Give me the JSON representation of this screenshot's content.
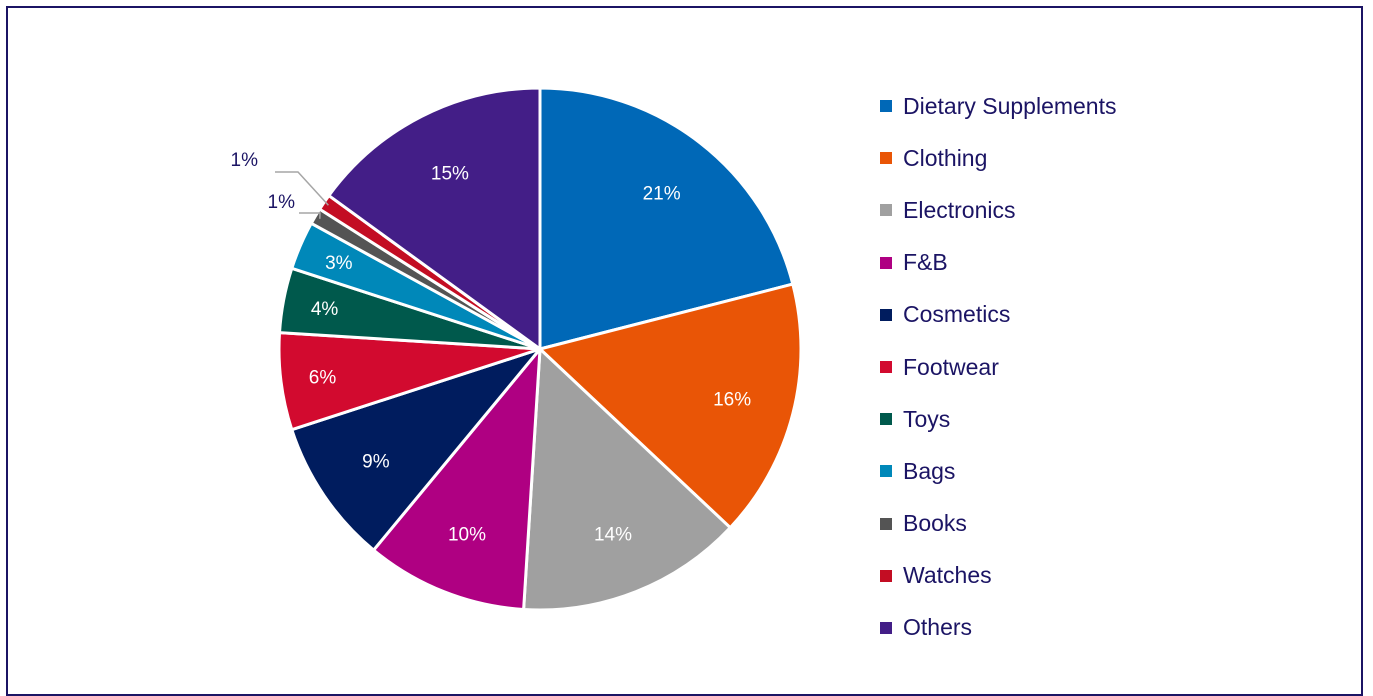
{
  "chart_data": {
    "type": "pie",
    "title": "",
    "legend_position": "right",
    "slices": [
      {
        "label": "Dietary Supplements",
        "value": 21,
        "display": "21%",
        "color": "#0068b7"
      },
      {
        "label": "Clothing",
        "value": 16,
        "display": "16%",
        "color": "#e95506"
      },
      {
        "label": "Electronics",
        "value": 14,
        "display": "14%",
        "color": "#a0a0a0"
      },
      {
        "label": "F&B",
        "value": 10,
        "display": "10%",
        "color": "#af0082"
      },
      {
        "label": "Cosmetics",
        "value": 9,
        "display": "9%",
        "color": "#001c5e"
      },
      {
        "label": "Footwear",
        "value": 6,
        "display": "6%",
        "color": "#d20a2f"
      },
      {
        "label": "Toys",
        "value": 4,
        "display": "4%",
        "color": "#00594c"
      },
      {
        "label": "Bags",
        "value": 3,
        "display": "3%",
        "color": "#0088b9"
      },
      {
        "label": "Books",
        "value": 1,
        "display": "1%",
        "color": "#545454"
      },
      {
        "label": "Watches",
        "value": 1,
        "display": "1%",
        "color": "#c30d23"
      },
      {
        "label": "Others",
        "value": 15,
        "display": "15%",
        "color": "#431e87"
      }
    ],
    "label_color_inside": "#ffffff",
    "label_color_outside": "#1b1464",
    "frame_color": "#1b1464"
  }
}
